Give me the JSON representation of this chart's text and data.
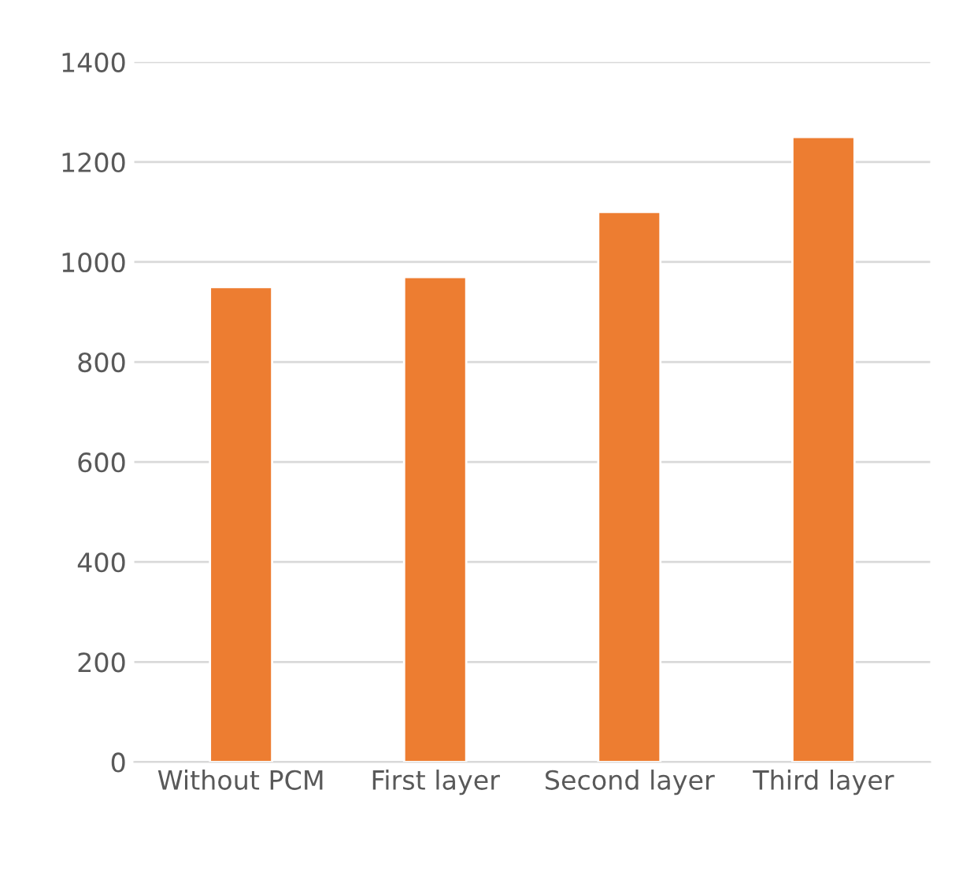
{
  "chart_data": {
    "type": "bar",
    "categories": [
      "Without PCM",
      "First layer",
      "Second layer",
      "Third layer"
    ],
    "values": [
      950,
      970,
      1100,
      1250
    ],
    "color": "#ed7d31",
    "ylim": [
      0,
      1400
    ],
    "yticks": [
      0,
      200,
      400,
      600,
      800,
      1000,
      1200,
      1400
    ],
    "grid": "y",
    "legend": false
  }
}
